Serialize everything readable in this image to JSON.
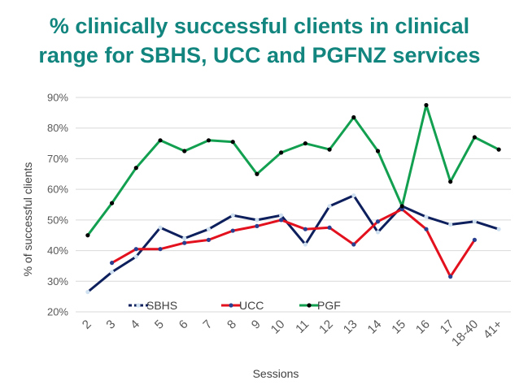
{
  "chart_data": {
    "type": "line",
    "title_lines": [
      "% clinically successful clients in clinical",
      "range for SBHS, UCC and PGFNZ services"
    ],
    "xlabel": "Sessions",
    "ylabel": "% of successful clients",
    "categories": [
      "2",
      "3",
      "4",
      "5",
      "6",
      "7",
      "8",
      "9",
      "10",
      "11",
      "12",
      "13",
      "14",
      "15",
      "16",
      "17",
      "18-40",
      "41+"
    ],
    "ylim": [
      20,
      90
    ],
    "yticks": [
      20,
      30,
      40,
      50,
      60,
      70,
      80,
      90
    ],
    "ytick_labels": [
      "20%",
      "30%",
      "40%",
      "50%",
      "60%",
      "70%",
      "80%",
      "90%"
    ],
    "legend_position": "inside-bottom-left",
    "series": [
      {
        "name": "SBHS",
        "color": "#0d1f5c",
        "marker_color": "#cfe0f0",
        "dashed_legend": true,
        "values": [
          26.5,
          33,
          38,
          47.5,
          44,
          47,
          51.5,
          50,
          51.5,
          42,
          54.5,
          58,
          46,
          54.5,
          51,
          48.5,
          49.5,
          47
        ]
      },
      {
        "name": "UCC",
        "color": "#e3101d",
        "marker_color": "#2a3f8f",
        "dashed_legend": false,
        "values": [
          null,
          36,
          40.5,
          40.5,
          42.5,
          43.5,
          46.5,
          48,
          50,
          47,
          47.5,
          42,
          49.5,
          53.5,
          47,
          31.5,
          43.5,
          null
        ]
      },
      {
        "name": "PGF",
        "color": "#12a050",
        "marker_color": "#000000",
        "dashed_legend": false,
        "values": [
          45,
          55.5,
          67,
          76,
          72.5,
          76,
          75.5,
          65,
          72,
          75,
          73,
          83.5,
          72.5,
          54.5,
          87.5,
          62.5,
          77,
          73
        ]
      }
    ]
  }
}
